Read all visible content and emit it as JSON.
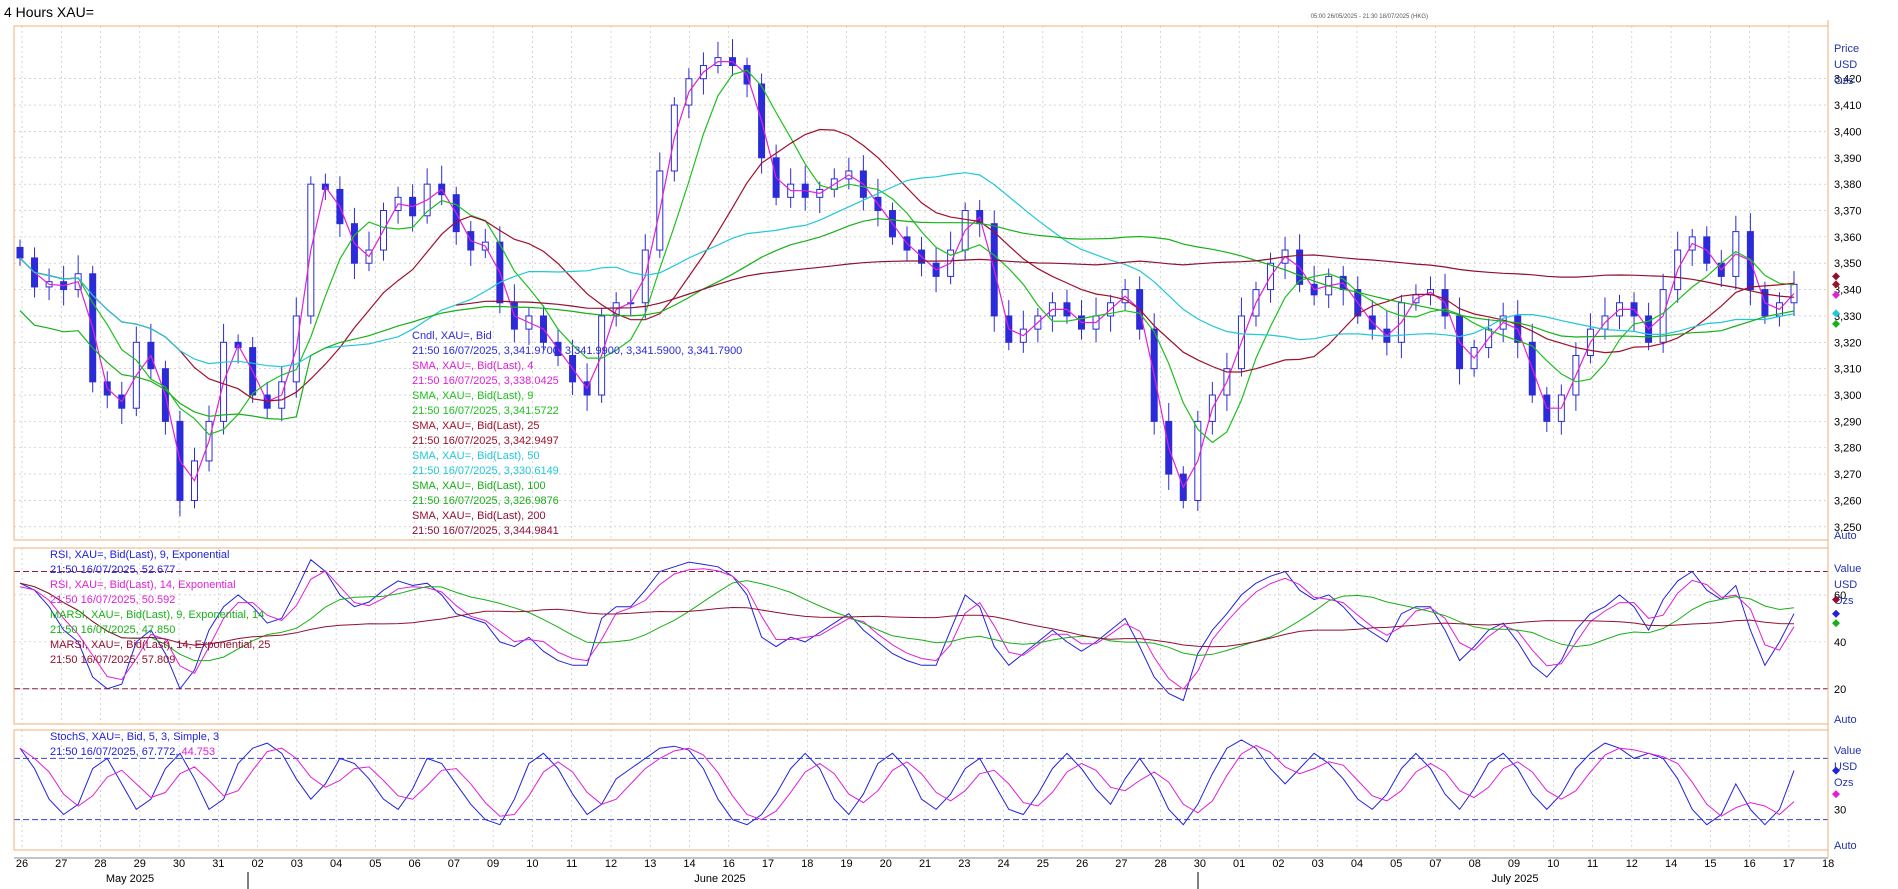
{
  "window": {
    "title": "4 Hours XAU=",
    "date_range": "05:00 26/05/2025 - 21:30 18/07/2025 (HKG)"
  },
  "colors": {
    "candle": "#2b2bd9",
    "sma4": "#e020d8",
    "sma9": "#1fbf1f",
    "sma25": "#a0102a",
    "sma50": "#20c8d8",
    "sma100": "#18b018",
    "sma200": "#901030",
    "rsi9": "#2222dd",
    "rsi14": "#e020d8",
    "marsi9": "#18b018",
    "marsi14": "#901030",
    "stoch_k": "#2222dd",
    "stoch_d": "#e020d8",
    "border": "#f2b27a",
    "grid": "#bbbbbb"
  },
  "x_axis": {
    "days": [
      "26",
      "27",
      "28",
      "29",
      "30",
      "31",
      "02",
      "03",
      "04",
      "05",
      "06",
      "07",
      "09",
      "10",
      "11",
      "12",
      "13",
      "14",
      "16",
      "17",
      "18",
      "19",
      "20",
      "21",
      "23",
      "24",
      "25",
      "26",
      "27",
      "28",
      "30",
      "01",
      "02",
      "03",
      "04",
      "05",
      "07",
      "08",
      "09",
      "10",
      "11",
      "12",
      "14",
      "15",
      "16",
      "17",
      "18"
    ],
    "months": [
      "May 2025",
      "June 2025",
      "July 2025"
    ]
  },
  "price_panel": {
    "axis_title": [
      "Price",
      "USD",
      "Ozs"
    ],
    "ticks": [
      "3,250",
      "3,260",
      "3,270",
      "3,280",
      "3,290",
      "3,300",
      "3,310",
      "3,320",
      "3,330",
      "3,340",
      "3,350",
      "3,360",
      "3,370",
      "3,380",
      "3,390",
      "3,400",
      "3,410",
      "3,420"
    ],
    "auto_label": "Auto",
    "legend": [
      {
        "name": "Cndl, XAU=, Bid",
        "value": "21:50 16/07/2025, 3,341.9700, 3,341.9900, 3,341.5900, 3,341.7900",
        "color": "#2b2bd9"
      },
      {
        "name": "SMA, XAU=, Bid(Last),  4",
        "value": "21:50 16/07/2025, 3,338.0425",
        "color": "#e020d8"
      },
      {
        "name": "SMA, XAU=, Bid(Last),  9",
        "value": "21:50 16/07/2025, 3,341.5722",
        "color": "#1fbf1f"
      },
      {
        "name": "SMA, XAU=, Bid(Last),  25",
        "value": "21:50 16/07/2025, 3,342.9497",
        "color": "#a0102a"
      },
      {
        "name": "SMA, XAU=, Bid(Last),  50",
        "value": "21:50 16/07/2025, 3,330.6149",
        "color": "#20c8d8"
      },
      {
        "name": "SMA, XAU=, Bid(Last),  100",
        "value": "21:50 16/07/2025, 3,326.9876",
        "color": "#18b018"
      },
      {
        "name": "SMA, XAU=, Bid(Last),  200",
        "value": "21:50 16/07/2025, 3,344.9841",
        "color": "#901030"
      }
    ]
  },
  "rsi_panel": {
    "axis_title": [
      "Value",
      "USD",
      "Ozs"
    ],
    "ticks": [
      "20",
      "40",
      "60"
    ],
    "auto_label": "Auto",
    "legend": [
      {
        "name": "RSI, XAU=, Bid(Last),  9, Exponential",
        "value": "21:50 16/07/2025, 52.677",
        "color": "#2222dd"
      },
      {
        "name": "RSI, XAU=, Bid(Last),  14, Exponential",
        "value": "21:50 16/07/2025, 50.592",
        "color": "#e020d8"
      },
      {
        "name": "MARSI, XAU=, Bid(Last),  9, Exponential, 14",
        "value": "21:50 16/07/2025, 47.850",
        "color": "#18b018"
      },
      {
        "name": "MARSI, XAU=, Bid(Last),  14, Exponential, 25",
        "value": "21:50 16/07/2025, 57.809",
        "color": "#901030"
      }
    ]
  },
  "stoch_panel": {
    "axis_title": [
      "Value",
      "USD",
      "Ozs"
    ],
    "ticks": [
      "30"
    ],
    "auto_label": "Auto",
    "legend_name": "StochS, XAU=, Bid,  5, 3, Simple, 3",
    "legend_value_prefix": "21:50 16/07/2025, 67.772, ",
    "legend_value_d": "44.753"
  },
  "chart_data": [
    {
      "type": "line",
      "title": "4 Hours XAU=",
      "subtype": "candlestick",
      "x_start": "26 May 2025",
      "x_end": "18 Jul 2025",
      "ylim": [
        3245,
        3440
      ],
      "series": [
        {
          "name": "Cndl, XAU=, Bid",
          "close": [
            3352,
            3341,
            3343,
            3340,
            3346,
            3305,
            3300,
            3295,
            3320,
            3310,
            3290,
            3260,
            3275,
            3290,
            3320,
            3318,
            3300,
            3295,
            3305,
            3330,
            3380,
            3378,
            3365,
            3350,
            3355,
            3370,
            3375,
            3368,
            3380,
            3376,
            3362,
            3355,
            3358,
            3335,
            3325,
            3330,
            3320,
            3315,
            3305,
            3300,
            3330,
            3335,
            3335,
            3355,
            3385,
            3410,
            3420,
            3425,
            3428,
            3425,
            3418,
            3390,
            3375,
            3380,
            3375,
            3378,
            3382,
            3385,
            3375,
            3370,
            3360,
            3355,
            3350,
            3345,
            3355,
            3370,
            3365,
            3330,
            3320,
            3325,
            3330,
            3335,
            3330,
            3325,
            3330,
            3335,
            3340,
            3325,
            3290,
            3270,
            3260,
            3290,
            3300,
            3310,
            3330,
            3340,
            3350,
            3355,
            3342,
            3338,
            3345,
            3340,
            3330,
            3325,
            3320,
            3335,
            3338,
            3340,
            3330,
            3310,
            3318,
            3325,
            3330,
            3320,
            3300,
            3290,
            3300,
            3315,
            3325,
            3330,
            3335,
            3330,
            3320,
            3340,
            3355,
            3360,
            3350,
            3345,
            3362,
            3340,
            3330,
            3335,
            3342
          ]
        },
        {
          "name": "SMA, XAU=, Bid(Last),  4"
        },
        {
          "name": "SMA, XAU=, Bid(Last),  9"
        },
        {
          "name": "SMA, XAU=, Bid(Last),  25"
        },
        {
          "name": "SMA, XAU=, Bid(Last),  50"
        },
        {
          "name": "SMA, XAU=, Bid(Last),  100"
        },
        {
          "name": "SMA, XAU=, Bid(Last),  200"
        }
      ]
    },
    {
      "type": "line",
      "ylim": [
        5,
        80
      ],
      "reference_lines": [
        20,
        70
      ],
      "series": [
        {
          "name": "RSI, XAU=, Bid(Last),  9, Exponential",
          "values": [
            65,
            62,
            55,
            45,
            40,
            25,
            20,
            22,
            40,
            45,
            35,
            20,
            28,
            45,
            55,
            60,
            55,
            48,
            50,
            62,
            75,
            70,
            60,
            55,
            57,
            62,
            66,
            64,
            65,
            60,
            52,
            50,
            48,
            40,
            38,
            42,
            36,
            32,
            30,
            30,
            50,
            55,
            55,
            62,
            70,
            72,
            74,
            73,
            72,
            68,
            60,
            42,
            38,
            42,
            40,
            44,
            48,
            52,
            45,
            40,
            35,
            32,
            30,
            30,
            45,
            60,
            55,
            38,
            30,
            35,
            40,
            45,
            40,
            36,
            40,
            45,
            50,
            38,
            25,
            18,
            15,
            35,
            45,
            52,
            60,
            65,
            68,
            70,
            62,
            58,
            60,
            55,
            48,
            44,
            40,
            52,
            55,
            55,
            45,
            32,
            38,
            45,
            48,
            40,
            30,
            25,
            32,
            45,
            52,
            55,
            60,
            55,
            45,
            58,
            66,
            70,
            62,
            58,
            64,
            45,
            30,
            40,
            52
          ]
        },
        {
          "name": "RSI, XAU=, Bid(Last),  14, Exponential"
        },
        {
          "name": "MARSI, XAU=, Bid(Last),  9, Exponential, 14"
        },
        {
          "name": "MARSI, XAU=, Bid(Last),  14, Exponential, 25"
        }
      ]
    },
    {
      "type": "line",
      "ylim": [
        0,
        100
      ],
      "reference_lines": [
        20,
        80
      ],
      "series": [
        {
          "name": "StochS %K",
          "values": [
            90,
            70,
            40,
            25,
            35,
            70,
            80,
            55,
            30,
            40,
            70,
            85,
            60,
            30,
            40,
            75,
            90,
            95,
            85,
            60,
            40,
            55,
            80,
            75,
            60,
            40,
            30,
            50,
            80,
            75,
            55,
            35,
            20,
            15,
            40,
            75,
            85,
            70,
            45,
            25,
            35,
            60,
            70,
            80,
            90,
            92,
            88,
            70,
            40,
            20,
            15,
            25,
            45,
            70,
            85,
            70,
            40,
            25,
            45,
            75,
            85,
            70,
            40,
            30,
            45,
            70,
            80,
            55,
            30,
            25,
            45,
            70,
            85,
            70,
            50,
            35,
            60,
            80,
            60,
            30,
            15,
            35,
            65,
            90,
            98,
            90,
            70,
            55,
            70,
            85,
            75,
            60,
            40,
            30,
            45,
            70,
            85,
            70,
            45,
            30,
            50,
            75,
            85,
            70,
            45,
            30,
            45,
            70,
            85,
            95,
            90,
            80,
            85,
            80,
            60,
            30,
            15,
            25,
            55,
            30,
            15,
            30,
            68
          ]
        },
        {
          "name": "StochS %D"
        }
      ]
    }
  ]
}
